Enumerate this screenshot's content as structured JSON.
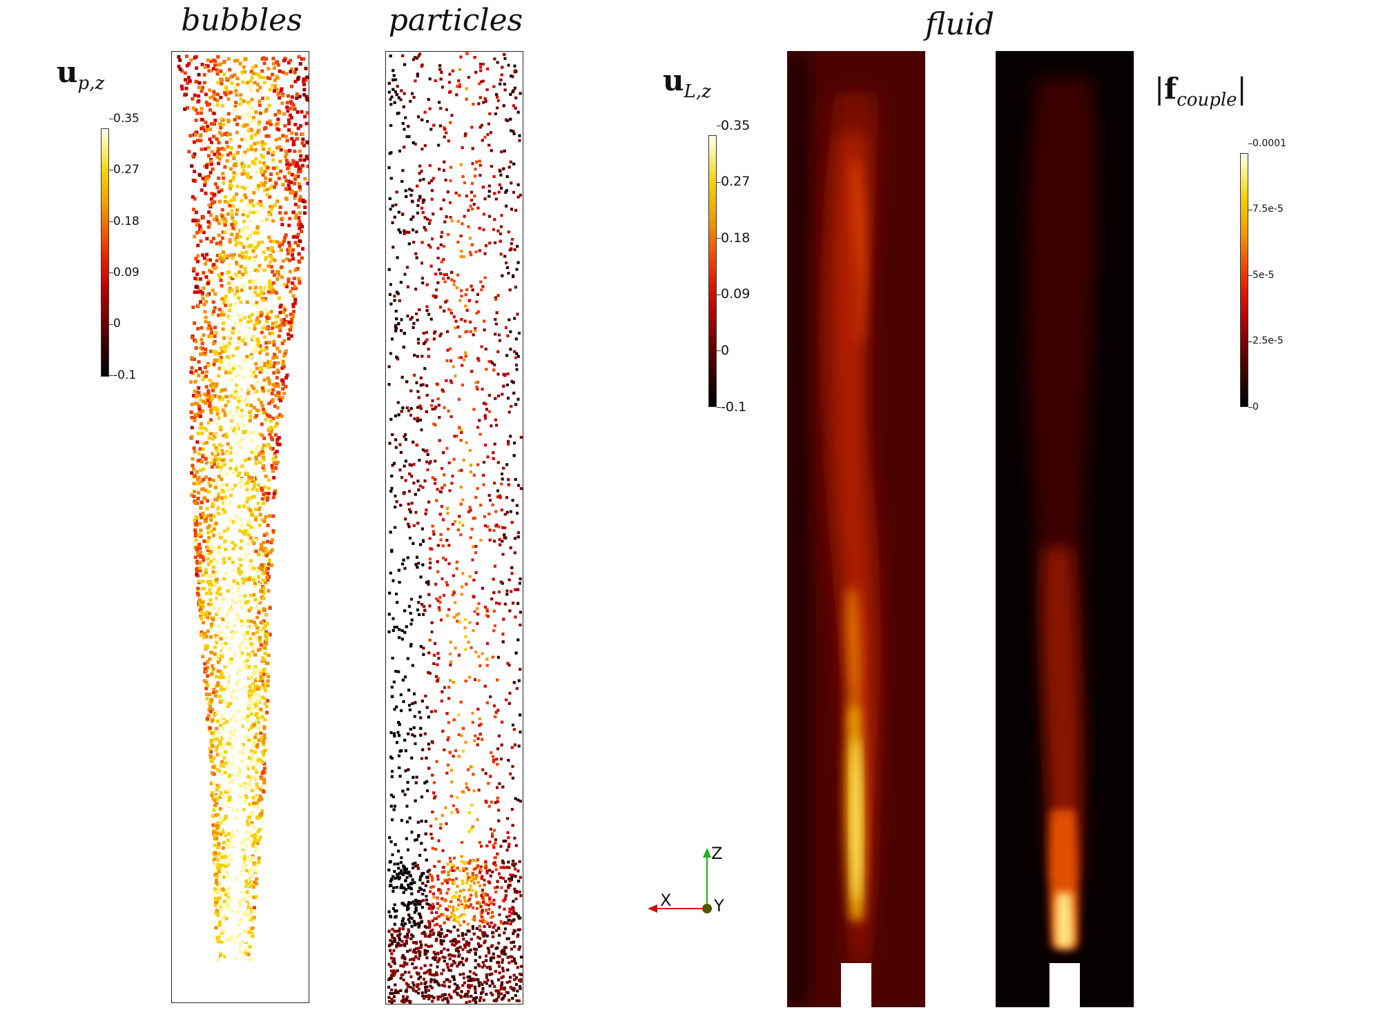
{
  "titles": {
    "bubbles": "bubbles",
    "particles": "particles",
    "fluid": "fluid"
  },
  "symbols": {
    "bubble_var": {
      "main": "u",
      "sub": "p,z"
    },
    "fluid_var": {
      "main": "u",
      "sub": "L,z"
    },
    "force_var": {
      "bar": "|",
      "main": "f",
      "sub": "couple"
    }
  },
  "colorbars": {
    "bubbles": {
      "ticks": [
        "0.35",
        "0.27",
        "0.18",
        "0.09",
        "0",
        "-0.1"
      ]
    },
    "fluid": {
      "ticks": [
        "0.35",
        "0.27",
        "0.18",
        "0.09",
        "0",
        "-0.1"
      ]
    },
    "force": {
      "ticks": [
        "0.0001",
        "7.5e-5",
        "5e-5",
        "2.5e-5",
        "0"
      ]
    }
  },
  "axes": {
    "z": "Z",
    "x": "X",
    "y": "Y"
  },
  "colors": {
    "colormap": [
      "#000000",
      "#3a0000",
      "#8a0000",
      "#d00000",
      "#f04000",
      "#f59000",
      "#f5d000",
      "#fff5a0",
      "#ffffff"
    ],
    "axis_z": "#22aa22",
    "axis_x": "#cc1111",
    "axis_y": "#666600"
  }
}
